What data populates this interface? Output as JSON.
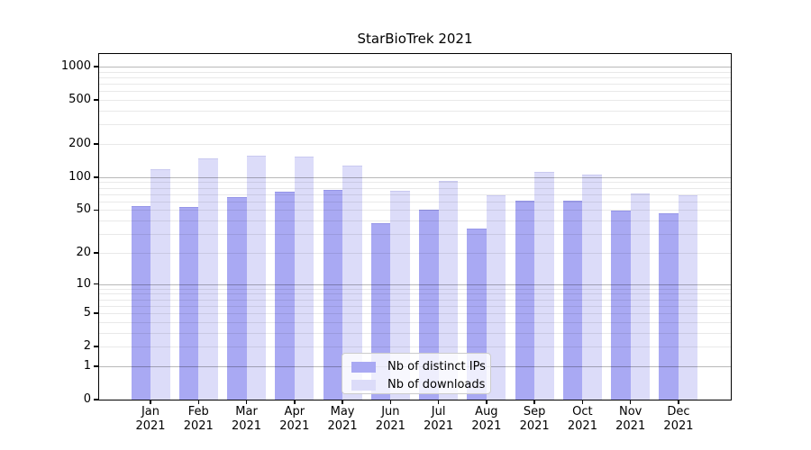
{
  "chart_data": {
    "type": "bar",
    "title": "StarBioTrek 2021",
    "categories": [
      "Jan",
      "Feb",
      "Mar",
      "Apr",
      "May",
      "Jun",
      "Jul",
      "Aug",
      "Sep",
      "Oct",
      "Nov",
      "Dec"
    ],
    "category_year": "2021",
    "series": [
      {
        "name": "Nb of distinct IPs",
        "color": "#a9a9f3",
        "edge_color": "#9595e8",
        "values": [
          54,
          53,
          66,
          73,
          76,
          38,
          50,
          34,
          61,
          61,
          49,
          47
        ]
      },
      {
        "name": "Nb of downloads",
        "color": "#dcdcf9",
        "edge_color": "#c9c9f0",
        "values": [
          118,
          148,
          157,
          154,
          127,
          75,
          93,
          68,
          112,
          106,
          71,
          68
        ]
      }
    ],
    "yscale": "log1p",
    "ylabel": "",
    "xlabel": "",
    "y_ticks": [
      0,
      1,
      2,
      5,
      10,
      20,
      50,
      100,
      200,
      500,
      1000
    ],
    "y_major_gridlines": [
      1,
      10,
      100,
      1000
    ],
    "ylim": [
      0,
      1270
    ],
    "grid": true,
    "legend_position": "lower center"
  },
  "colors": {
    "background": "#ffffff",
    "spine": "#000000",
    "major_grid": "#b8b8b8",
    "minor_grid": "#e9e9e9",
    "legend_border": "#cccccc"
  }
}
